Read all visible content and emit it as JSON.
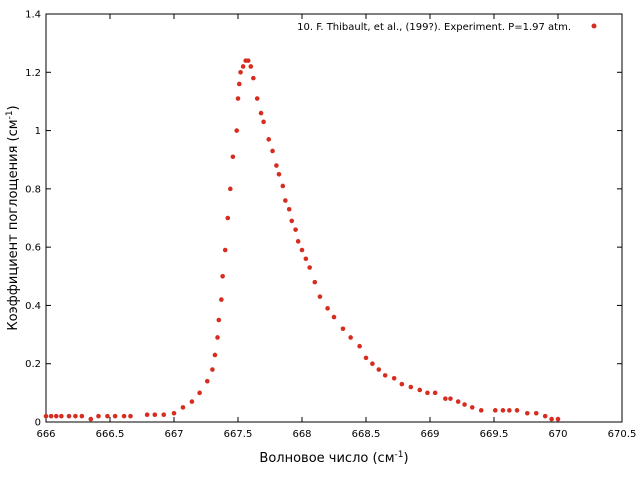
{
  "chart_data": {
    "type": "scatter",
    "xlabel": "Волновое число (см",
    "xlabel_sup": "-1",
    "xlabel_close": ")",
    "ylabel": "Коэффициент поглощения (см",
    "ylabel_sup": "-1",
    "ylabel_close": ")",
    "xlim": [
      666,
      670.5
    ],
    "ylim": [
      0,
      1.4
    ],
    "xticks": [
      666,
      666.5,
      667,
      667.5,
      668,
      668.5,
      669,
      669.5,
      670,
      670.5
    ],
    "yticks": [
      0,
      0.2,
      0.4,
      0.6,
      0.8,
      1,
      1.2,
      1.4
    ],
    "grid": false,
    "legend_position": "top-right",
    "colors": {
      "series": "#d62d20",
      "axis": "#000000"
    },
    "series": [
      {
        "name": "10. F. Thibault, et al., (199?). Experiment. P=1.97 atm.",
        "x": [
          666.0,
          666.04,
          666.08,
          666.12,
          666.18,
          666.23,
          666.28,
          666.35,
          666.41,
          666.48,
          666.54,
          666.61,
          666.66,
          666.79,
          666.85,
          666.92,
          667.0,
          667.07,
          667.14,
          667.2,
          667.26,
          667.3,
          667.32,
          667.34,
          667.35,
          667.37,
          667.38,
          667.4,
          667.42,
          667.44,
          667.46,
          667.49,
          667.5,
          667.51,
          667.52,
          667.54,
          667.56,
          667.58,
          667.6,
          667.62,
          667.65,
          667.68,
          667.7,
          667.74,
          667.77,
          667.8,
          667.82,
          667.85,
          667.87,
          667.9,
          667.92,
          667.95,
          667.97,
          668.0,
          668.03,
          668.06,
          668.1,
          668.14,
          668.2,
          668.25,
          668.32,
          668.38,
          668.45,
          668.5,
          668.55,
          668.6,
          668.65,
          668.72,
          668.78,
          668.85,
          668.92,
          668.98,
          669.04,
          669.12,
          669.16,
          669.22,
          669.27,
          669.33,
          669.4,
          669.51,
          669.57,
          669.62,
          669.68,
          669.76,
          669.83,
          669.9,
          669.95,
          670.0
        ],
        "y": [
          0.02,
          0.02,
          0.02,
          0.02,
          0.02,
          0.02,
          0.02,
          0.01,
          0.02,
          0.02,
          0.02,
          0.02,
          0.02,
          0.025,
          0.025,
          0.025,
          0.03,
          0.05,
          0.07,
          0.1,
          0.14,
          0.18,
          0.23,
          0.29,
          0.35,
          0.42,
          0.5,
          0.59,
          0.7,
          0.8,
          0.91,
          1.0,
          1.11,
          1.16,
          1.2,
          1.22,
          1.24,
          1.24,
          1.22,
          1.18,
          1.11,
          1.06,
          1.03,
          0.97,
          0.93,
          0.88,
          0.85,
          0.81,
          0.76,
          0.73,
          0.69,
          0.66,
          0.62,
          0.59,
          0.56,
          0.53,
          0.48,
          0.43,
          0.39,
          0.36,
          0.32,
          0.29,
          0.26,
          0.22,
          0.2,
          0.18,
          0.16,
          0.15,
          0.13,
          0.12,
          0.11,
          0.1,
          0.1,
          0.08,
          0.08,
          0.07,
          0.06,
          0.05,
          0.04,
          0.04,
          0.04,
          0.04,
          0.04,
          0.03,
          0.03,
          0.02,
          0.01,
          0.01
        ]
      }
    ]
  }
}
